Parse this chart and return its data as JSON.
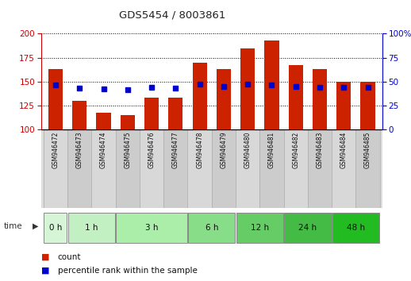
{
  "title": "GDS5454 / 8003861",
  "samples": [
    "GSM946472",
    "GSM946473",
    "GSM946474",
    "GSM946475",
    "GSM946476",
    "GSM946477",
    "GSM946478",
    "GSM946479",
    "GSM946480",
    "GSM946481",
    "GSM946482",
    "GSM946483",
    "GSM946484",
    "GSM946485"
  ],
  "counts": [
    163,
    130,
    117,
    115,
    133,
    133,
    170,
    163,
    185,
    193,
    167,
    163,
    150,
    150
  ],
  "percentile_ranks": [
    46,
    43,
    42,
    41,
    44,
    43,
    47,
    45,
    47,
    46,
    45,
    44,
    44,
    44
  ],
  "time_groups": [
    {
      "label": "0 h",
      "indices": [
        0
      ],
      "color": "#d6f5d6"
    },
    {
      "label": "1 h",
      "indices": [
        1,
        2
      ],
      "color": "#c2f0c2"
    },
    {
      "label": "3 h",
      "indices": [
        3,
        4,
        5
      ],
      "color": "#aaeeaa"
    },
    {
      "label": "6 h",
      "indices": [
        6,
        7
      ],
      "color": "#88dd88"
    },
    {
      "label": "12 h",
      "indices": [
        8,
        9
      ],
      "color": "#66cc66"
    },
    {
      "label": "24 h",
      "indices": [
        10,
        11
      ],
      "color": "#44bb44"
    },
    {
      "label": "48 h",
      "indices": [
        12,
        13
      ],
      "color": "#22bb22"
    }
  ],
  "ylim_left": [
    100,
    200
  ],
  "ylim_right": [
    0,
    100
  ],
  "yticks_left": [
    100,
    125,
    150,
    175,
    200
  ],
  "yticks_right": [
    0,
    25,
    50,
    75,
    100
  ],
  "bar_color": "#cc2200",
  "dot_color": "#0000cc",
  "bar_width": 0.6,
  "bg_color": "#ffffff",
  "grid_color": "#000000",
  "sample_bg_odd": "#d4d4d4",
  "sample_bg_even": "#c8c8c8",
  "time_label": "time",
  "left_ax_color": "#cc0000",
  "right_ax_color": "#0000cc"
}
